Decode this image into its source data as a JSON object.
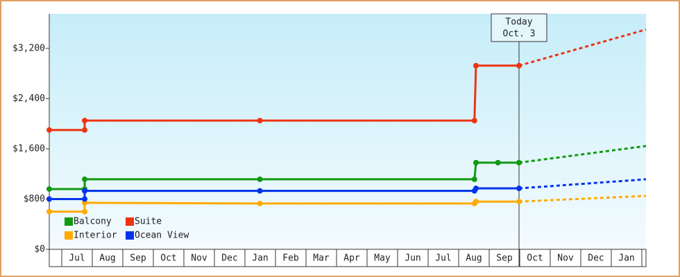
{
  "chart_data": {
    "type": "line",
    "categories": [
      "Jul",
      "Aug",
      "Sep",
      "Oct",
      "Nov",
      "Dec",
      "Jan",
      "Feb",
      "Mar",
      "Apr",
      "May",
      "Jun",
      "Jul",
      "Aug",
      "Sep",
      "Oct",
      "Nov",
      "Dec",
      "Jan"
    ],
    "xlim": [
      0,
      19.55
    ],
    "ylim": [
      0,
      3750
    ],
    "yticks": [
      {
        "value": 0,
        "label": "$0"
      },
      {
        "value": 800,
        "label": "$800"
      },
      {
        "value": 1600,
        "label": "$1,600"
      },
      {
        "value": 2400,
        "label": "$2,400"
      },
      {
        "value": 3200,
        "label": "$3,200"
      }
    ],
    "annotation": {
      "label": [
        "Today",
        "Oct. 3"
      ],
      "x": 15.39
    },
    "series": [
      {
        "name": "Balcony",
        "color": "#119911",
        "x": [
          0,
          1.16,
          1.16,
          6.9,
          13.93,
          13.98,
          14.7,
          15.39,
          19.55
        ],
        "values": [
          960,
          960,
          1115,
          1115,
          1115,
          1380,
          1380,
          1380,
          1645
        ]
      },
      {
        "name": "Suite",
        "color": "#ee3311",
        "x": [
          0,
          1.16,
          1.16,
          6.9,
          13.93,
          13.98,
          15.39,
          19.55
        ],
        "values": [
          1900,
          1900,
          2050,
          2050,
          2050,
          2925,
          2925,
          3500
        ]
      },
      {
        "name": "Interior",
        "color": "#ffaa00",
        "x": [
          0,
          1.16,
          1.16,
          6.9,
          13.93,
          13.98,
          15.39,
          19.55
        ],
        "values": [
          600,
          600,
          740,
          730,
          730,
          760,
          760,
          850
        ]
      },
      {
        "name": "Ocean View",
        "color": "#0033ee",
        "x": [
          0,
          1.16,
          1.16,
          6.9,
          13.93,
          13.98,
          15.39,
          19.55
        ],
        "values": [
          800,
          800,
          930,
          930,
          930,
          970,
          970,
          1115
        ]
      }
    ]
  }
}
